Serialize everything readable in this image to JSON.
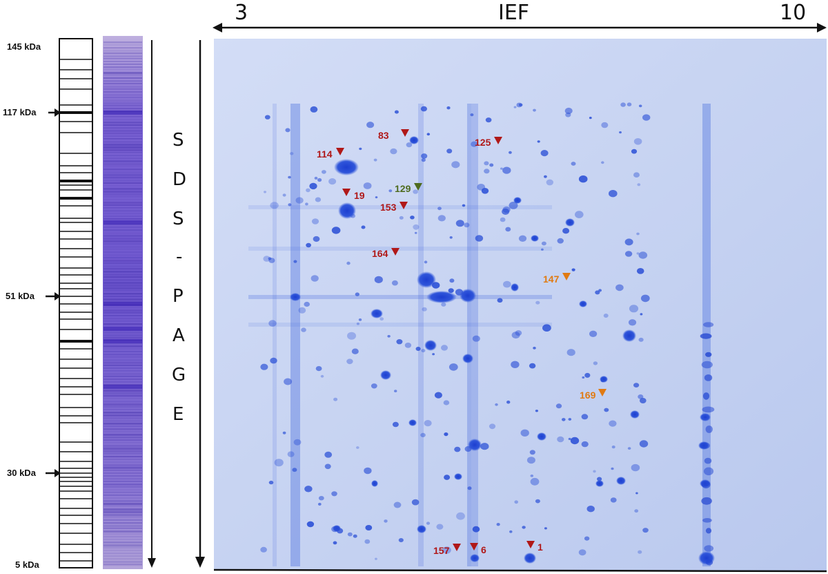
{
  "ief_axis": {
    "title": "IEF",
    "start": "3",
    "end": "10"
  },
  "sds_axis": {
    "letters": [
      "S",
      "D",
      "S",
      "-",
      "P",
      "A",
      "G",
      "E"
    ]
  },
  "mw_markers": [
    {
      "label": "145 kDa",
      "arrow": false
    },
    {
      "label": "117 kDa",
      "arrow": true
    },
    {
      "label": "51 kDa",
      "arrow": true
    },
    {
      "label": "30 kDa",
      "arrow": true
    },
    {
      "label": "5 kDa",
      "arrow": false
    }
  ],
  "spot_labels": [
    {
      "id": "83",
      "color": "#b01818"
    },
    {
      "id": "125",
      "color": "#b01818"
    },
    {
      "id": "114",
      "color": "#b01818"
    },
    {
      "id": "129",
      "color": "#4f6b1f"
    },
    {
      "id": "19",
      "color": "#b01818"
    },
    {
      "id": "153",
      "color": "#b01818"
    },
    {
      "id": "164",
      "color": "#b01818"
    },
    {
      "id": "147",
      "color": "#e07a12"
    },
    {
      "id": "169",
      "color": "#e07a12"
    },
    {
      "id": "157",
      "color": "#b01818"
    },
    {
      "id": "6",
      "color": "#b01818"
    },
    {
      "id": "1",
      "color": "#b01818"
    }
  ],
  "colors": {
    "gel_background": "#c7d3f2",
    "protein_spot": "#2a4fd6",
    "lane_stain": "#6a4fcf",
    "annotation_red": "#b01818",
    "annotation_orange": "#e07a12",
    "annotation_green": "#4f6b1f"
  }
}
